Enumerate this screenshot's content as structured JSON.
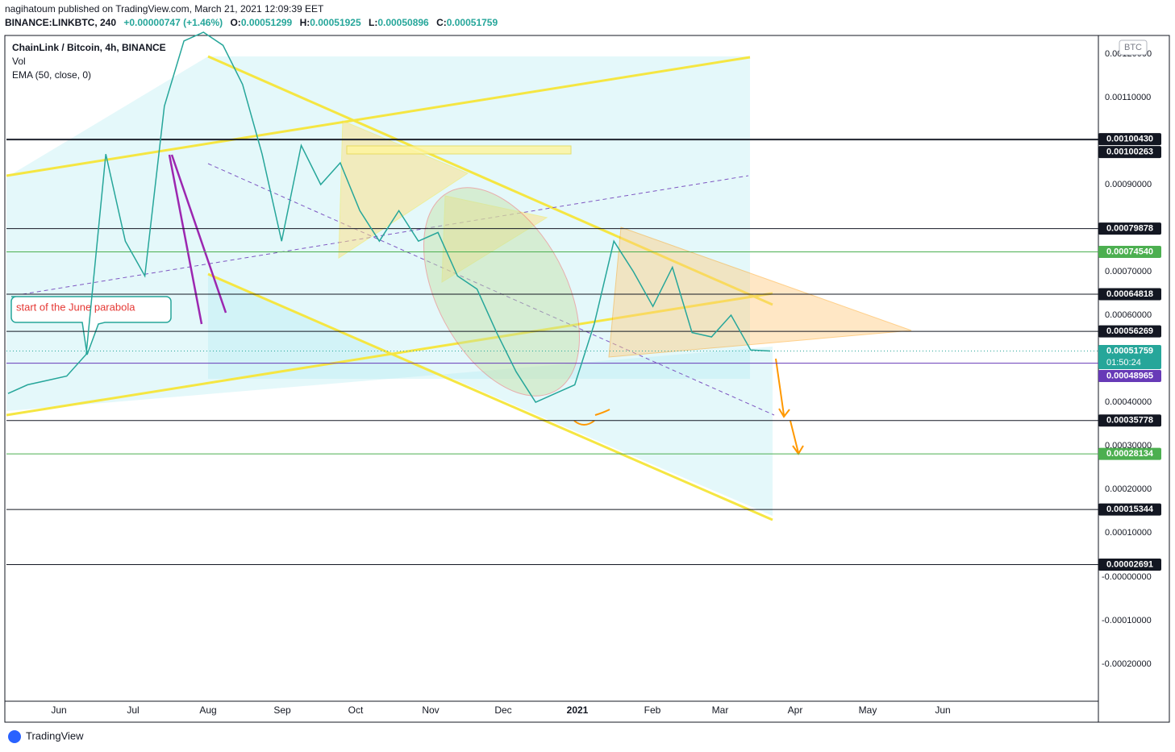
{
  "header": {
    "published": "nagihatoum published on TradingView.com, March 21, 2021 12:09:39 EET",
    "symbol": "BINANCE:LINKBTC, 240",
    "change": "+0.00000747 (+1.46%)",
    "ohlc": [
      {
        "key": "O:",
        "value": "0.00051299"
      },
      {
        "key": "H:",
        "value": "0.00051925"
      },
      {
        "key": "L:",
        "value": "0.00050896"
      },
      {
        "key": "C:",
        "value": "0.00051759"
      }
    ]
  },
  "legend": [
    "ChainLink / Bitcoin, 4h, BINANCE",
    "Vol",
    "EMA (50, close, 0)"
  ],
  "annotation": "start of the June parabola",
  "currency": "BTC",
  "price_ticks": [
    "0.00120000",
    "0.00110000",
    "0.00090000",
    "0.00070000",
    "0.00060000",
    "0.00040000",
    "0.00030000",
    "0.00020000",
    "0.00010000"
  ],
  "volume_ticks": [
    "-0.00000000",
    "-0.00010000",
    "-0.00020000"
  ],
  "levels": [
    {
      "label": "0.00100430",
      "color": "#131722"
    },
    {
      "label": "0.00100263",
      "color": "#131722"
    },
    {
      "label": "0.00079878",
      "color": "#131722"
    },
    {
      "label": "0.00074540",
      "color": "#4caf50"
    },
    {
      "label": "0.00064818",
      "color": "#131722"
    },
    {
      "label": "0.00056269",
      "color": "#131722"
    },
    {
      "label": "0.00051759",
      "color": "#26a69a",
      "countdown": "01:50:24"
    },
    {
      "label": "0.00048965",
      "color": "#673ab7"
    },
    {
      "label": "0.00035778",
      "color": "#131722"
    },
    {
      "label": "0.00028134",
      "color": "#4caf50"
    },
    {
      "label": "0.00015344",
      "color": "#131722"
    },
    {
      "label": "0.00002691",
      "color": "#131722"
    }
  ],
  "months": [
    "Jun",
    "Jul",
    "Aug",
    "Sep",
    "Oct",
    "Nov",
    "Dec",
    "2021",
    "Feb",
    "Mar",
    "Apr",
    "May",
    "Jun"
  ],
  "price_path": [
    0.00042,
    0.00044,
    0.00045,
    0.00046,
    0.00051,
    0.00097,
    0.00077,
    0.00069,
    0.00108,
    0.00123,
    0.00125,
    0.00122,
    0.00113,
    0.00097,
    0.00077,
    0.00099,
    0.0009,
    0.00095,
    0.00084,
    0.00077,
    0.00084,
    0.00077,
    0.00079,
    0.00069,
    0.00066,
    0.00056,
    0.00047,
    0.0004,
    0.00042,
    0.00044,
    0.00058,
    0.00077,
    0.0007,
    0.00062,
    0.00071,
    0.00056,
    0.00055,
    0.0006,
    0.00052,
    0.00051759
  ],
  "brand": "TradingView"
}
